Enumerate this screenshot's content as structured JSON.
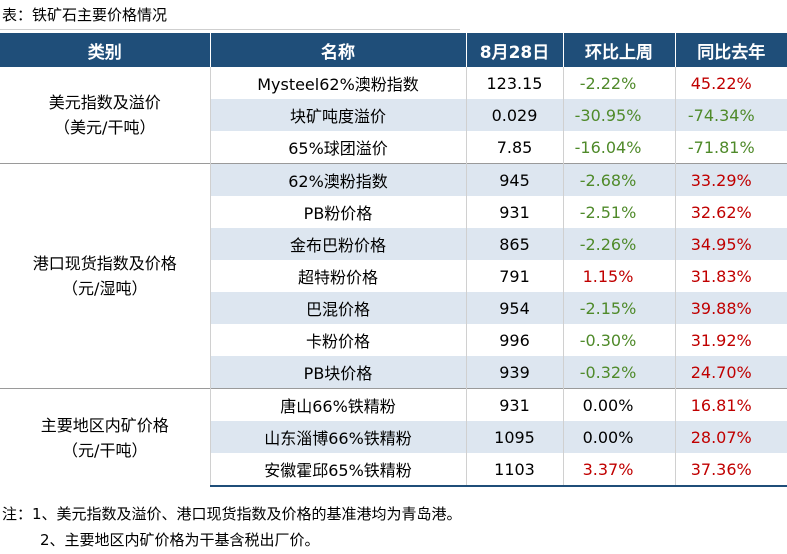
{
  "caption": "表：铁矿石主要价格情况",
  "headers": [
    "类别",
    "名称",
    "8月28日",
    "环比上周",
    "同比去年"
  ],
  "groups": [
    {
      "category": [
        "美元指数及溢价",
        "（美元/干吨）"
      ],
      "rows": [
        {
          "name": "Mysteel62%澳粉指数",
          "price": "123.15",
          "wow": "-2.22%",
          "yoy": "45.22%"
        },
        {
          "name": "块矿吨度溢价",
          "price": "0.029",
          "wow": "-30.95%",
          "yoy": "-74.34%"
        },
        {
          "name": "65%球团溢价",
          "price": "7.85",
          "wow": "-16.04%",
          "yoy": "-71.81%"
        }
      ]
    },
    {
      "category": [
        "港口现货指数及价格",
        "（元/湿吨）"
      ],
      "rows": [
        {
          "name": "62%澳粉指数",
          "price": "945",
          "wow": "-2.68%",
          "yoy": "33.29%"
        },
        {
          "name": "PB粉价格",
          "price": "931",
          "wow": "-2.51%",
          "yoy": "32.62%"
        },
        {
          "name": "金布巴粉价格",
          "price": "865",
          "wow": "-2.26%",
          "yoy": "34.95%"
        },
        {
          "name": "超特粉价格",
          "price": "791",
          "wow": "1.15%",
          "yoy": "31.83%"
        },
        {
          "name": "巴混价格",
          "price": "954",
          "wow": "-2.15%",
          "yoy": "39.88%"
        },
        {
          "name": "卡粉价格",
          "price": "996",
          "wow": "-0.30%",
          "yoy": "31.92%"
        },
        {
          "name": "PB块价格",
          "price": "939",
          "wow": "-0.32%",
          "yoy": "24.70%"
        }
      ]
    },
    {
      "category": [
        "主要地区内矿价格",
        "（元/干吨）"
      ],
      "rows": [
        {
          "name": "唐山66%铁精粉",
          "price": "931",
          "wow": "0.00%",
          "yoy": "16.81%"
        },
        {
          "name": "山东淄博66%铁精粉",
          "price": "1095",
          "wow": "0.00%",
          "yoy": "28.07%"
        },
        {
          "name": "安徽霍邱65%铁精粉",
          "price": "1103",
          "wow": "3.37%",
          "yoy": "37.36%"
        }
      ]
    }
  ],
  "notes": [
    "注：1、美元指数及溢价、港口现货指数及价格的基准港均为青岛港。",
    "2、主要地区内矿价格为干基含税出厂价。"
  ],
  "colors": {
    "header_bg": "#1f4e79",
    "row_shade": "#dde6f0",
    "negative": "#4f8a2a",
    "positive": "#c00000"
  }
}
